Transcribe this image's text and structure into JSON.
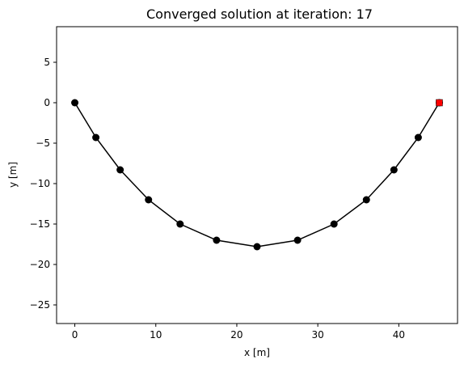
{
  "chart_data": {
    "type": "line",
    "title": "Converged solution at iteration: 17",
    "xlabel": "x [m]",
    "ylabel": "y [m]",
    "xlim": [
      -2.25,
      47.25
    ],
    "ylim": [
      -27.3,
      9.4
    ],
    "x_ticks": [
      0,
      10,
      20,
      30,
      40
    ],
    "y_ticks": [
      5,
      0,
      -5,
      -10,
      -15,
      -20,
      -25
    ],
    "series": [
      {
        "color": "#000000",
        "marker": "circle",
        "x": [
          0,
          2.6,
          5.6,
          9.1,
          13.0,
          17.5,
          22.5,
          27.5,
          32.0,
          36.0,
          39.4,
          42.4,
          45.0
        ],
        "y": [
          0,
          -4.3,
          -8.3,
          -12.0,
          -15.0,
          -17.0,
          -17.8,
          -17.0,
          -15.0,
          -12.0,
          -8.3,
          -4.3,
          0
        ]
      }
    ],
    "highlight_point": {
      "x": 45.0,
      "y": 0,
      "color": "#ff0000",
      "marker": "square"
    },
    "grid": false,
    "legend": "none"
  }
}
